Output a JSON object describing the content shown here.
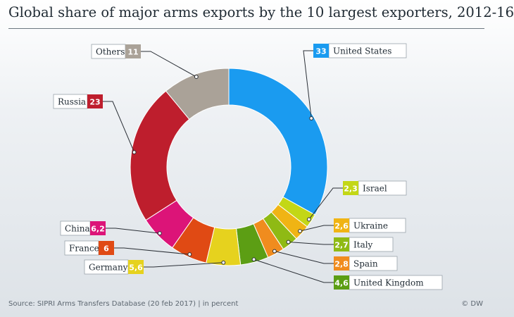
{
  "title": "Global share of major arms exports by the 10 largest exporters, 2012-16",
  "footer": {
    "source": "Source: SIPRI Arms Transfers Database (20 feb 2017) | in percent",
    "credit": "© DW"
  },
  "chart_data": {
    "type": "pie",
    "variant": "donut",
    "unit": "percent",
    "slices": [
      {
        "label": "United States",
        "value": 33,
        "display": "33",
        "color": "#1a9bf0"
      },
      {
        "label": "Israel",
        "value": 2.3,
        "display": "2,3",
        "color": "#c3d716"
      },
      {
        "label": "Ukraine",
        "value": 2.6,
        "display": "2,6",
        "color": "#f0b414"
      },
      {
        "label": "Italy",
        "value": 2.7,
        "display": "2,7",
        "color": "#8fba14"
      },
      {
        "label": "Spain",
        "value": 2.8,
        "display": "2,8",
        "color": "#f08c1e"
      },
      {
        "label": "United Kingdom",
        "value": 4.6,
        "display": "4,6",
        "color": "#5c9e14"
      },
      {
        "label": "Germany",
        "value": 5.6,
        "display": "5,6",
        "color": "#e6d21e"
      },
      {
        "label": "France",
        "value": 6,
        "display": "6",
        "color": "#e04a14"
      },
      {
        "label": "China",
        "value": 6.2,
        "display": "6,2",
        "color": "#dc1478"
      },
      {
        "label": "Russia",
        "value": 23,
        "display": "23",
        "color": "#be1e2d"
      },
      {
        "label": "Others",
        "value": 11,
        "display": "11",
        "color": "#aaa298"
      }
    ]
  }
}
